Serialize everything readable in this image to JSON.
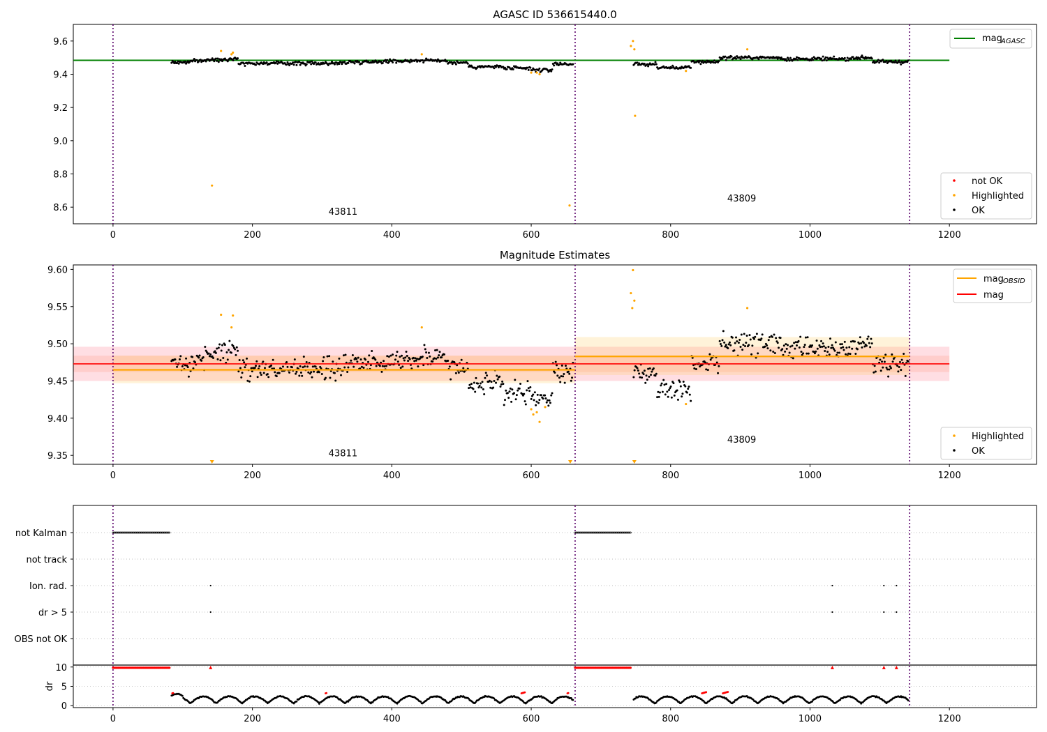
{
  "chart_data": [
    {
      "type": "scatter",
      "title": "AGASC ID 536615440.0",
      "xlim": [
        -57,
        1325
      ],
      "ylim": [
        8.5,
        9.7
      ],
      "xticks": [
        0,
        200,
        400,
        600,
        800,
        1000,
        1200
      ],
      "yticks": [
        8.6,
        8.8,
        9.0,
        9.2,
        9.4,
        9.6
      ],
      "obs_boundaries": [
        0,
        663,
        1143
      ],
      "obs_labels": [
        {
          "text": "43811",
          "x": 330,
          "y": 8.555
        },
        {
          "text": "43809",
          "x": 902,
          "y": 8.635
        }
      ],
      "reference_lines": [
        {
          "name": "mag_AGASC",
          "y": 9.484,
          "x": [
            -57,
            1200
          ],
          "color": "#008000"
        }
      ],
      "legend_lines": [
        {
          "label": "mag",
          "sub": "AGASC",
          "color": "#008000"
        }
      ],
      "legend_points": [
        {
          "label": "not OK",
          "color": "#ff0000"
        },
        {
          "label": "Highlighted",
          "color": "#ffa500"
        },
        {
          "label": "OK",
          "color": "#000000"
        }
      ],
      "highlighted_points": [
        [
          142,
          8.73
        ],
        [
          155,
          9.54
        ],
        [
          170,
          9.52
        ],
        [
          172,
          9.53
        ],
        [
          443,
          9.52
        ],
        [
          600,
          9.41
        ],
        [
          608,
          9.41
        ],
        [
          612,
          9.4
        ],
        [
          655,
          8.61
        ],
        [
          743,
          9.57
        ],
        [
          746,
          9.6
        ],
        [
          748,
          9.55
        ],
        [
          749,
          9.15
        ],
        [
          822,
          9.42
        ],
        [
          910,
          9.55
        ]
      ]
    },
    {
      "type": "scatter",
      "title": "Magnitude Estimates",
      "xlim": [
        -57,
        1325
      ],
      "ylim": [
        9.338,
        9.606
      ],
      "xticks": [
        0,
        200,
        400,
        600,
        800,
        1000,
        1200
      ],
      "yticks": [
        9.35,
        9.4,
        9.45,
        9.5,
        9.55,
        9.6
      ],
      "obs_boundaries": [
        0,
        663,
        1143
      ],
      "obs_labels": [
        {
          "text": "43811",
          "x": 330,
          "y": 9.349
        },
        {
          "text": "43809",
          "x": 902,
          "y": 9.367
        }
      ],
      "mag": 9.473,
      "mag_band": [
        9.45,
        9.496
      ],
      "mag_inner_band": [
        9.462,
        9.484
      ],
      "mag_obsid": [
        {
          "x": [
            0,
            663
          ],
          "y": 9.465,
          "band": [
            9.447,
            9.484
          ]
        },
        {
          "x": [
            663,
            1143
          ],
          "y": 9.483,
          "band": [
            9.458,
            9.509
          ]
        }
      ],
      "legend_lines": [
        {
          "label": "mag",
          "sub": "OBSID",
          "color": "#ffa500"
        },
        {
          "label": "mag",
          "sub": "",
          "color": "#ff0000"
        }
      ],
      "legend_points": [
        {
          "label": "Highlighted",
          "color": "#ffa500"
        },
        {
          "label": "OK",
          "color": "#000000"
        }
      ],
      "highlighted_points": [
        [
          155,
          9.539
        ],
        [
          170,
          9.522
        ],
        [
          172,
          9.538
        ],
        [
          443,
          9.522
        ],
        [
          600,
          9.412
        ],
        [
          603,
          9.405
        ],
        [
          608,
          9.408
        ],
        [
          612,
          9.395
        ],
        [
          620,
          9.415
        ],
        [
          743,
          9.568
        ],
        [
          746,
          9.599
        ],
        [
          745,
          9.548
        ],
        [
          748,
          9.558
        ],
        [
          910,
          9.548
        ],
        [
          822,
          9.419
        ]
      ],
      "clipped_points": [
        142,
        656,
        748
      ]
    },
    {
      "type": "scatter",
      "title": "",
      "xlim": [
        -57,
        1325
      ],
      "xticks": [
        0,
        200,
        400,
        600,
        800,
        1000,
        1200
      ],
      "obs_boundaries": [
        0,
        663,
        1143
      ],
      "flag_rows": [
        "not Kalman",
        "not track",
        "Ion. rad.",
        "dr > 5",
        "OBS not OK"
      ],
      "flag_points": [
        {
          "row": "not Kalman",
          "ranges": [
            [
              0,
              82
            ],
            [
              663,
              743
            ]
          ]
        },
        {
          "row": "Ion. rad.",
          "x": [
            140,
            1032,
            1106,
            1124
          ]
        },
        {
          "row": "dr > 5",
          "x": [
            140,
            1032,
            1106,
            1124
          ]
        }
      ],
      "dr": {
        "ylabel": "dr",
        "yticks": [
          0,
          5,
          10
        ],
        "ylim": [
          -0.5,
          10.5
        ],
        "clipped_red_ranges": [
          [
            0,
            82
          ],
          [
            663,
            743
          ]
        ],
        "clipped_red_x": [
          140,
          1032,
          1106,
          1124
        ],
        "red_segments": [
          [
            85,
            87
          ],
          [
            305,
            307
          ],
          [
            586,
            592
          ],
          [
            652,
            654
          ],
          [
            845,
            852
          ],
          [
            875,
            883
          ]
        ]
      }
    }
  ]
}
